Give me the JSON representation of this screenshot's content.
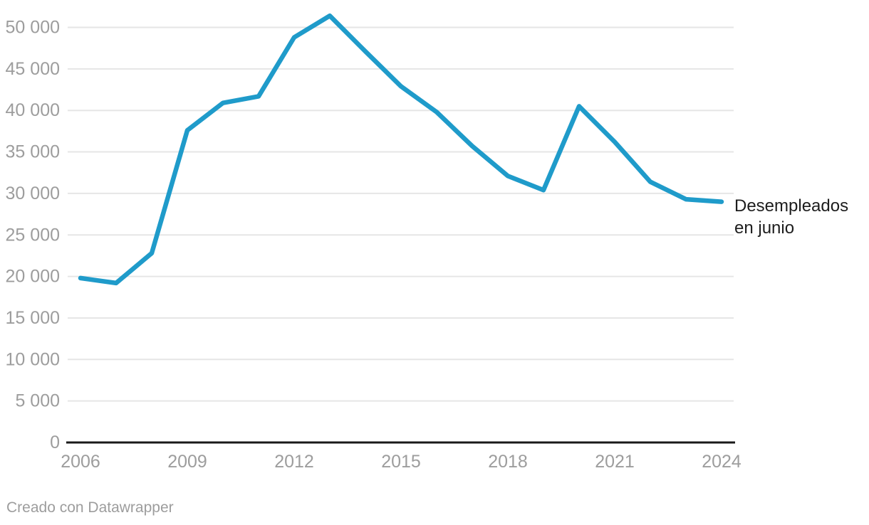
{
  "chart_data": {
    "type": "line",
    "x": [
      2006,
      2007,
      2008,
      2009,
      2010,
      2011,
      2012,
      2013,
      2014,
      2015,
      2016,
      2017,
      2018,
      2019,
      2020,
      2021,
      2022,
      2023,
      2024
    ],
    "series": [
      {
        "name": "Desempleados en junio",
        "values": [
          19800,
          19200,
          22800,
          37600,
          40900,
          41700,
          48800,
          51400,
          47100,
          42900,
          39800,
          35700,
          32100,
          30400,
          40500,
          36200,
          31400,
          29300,
          29000
        ]
      }
    ],
    "title": "",
    "xlabel": "",
    "ylabel": "",
    "ylim": [
      0,
      50000
    ],
    "ytick_step": 5000,
    "ytick_labels": [
      "0",
      "5 000",
      "10 000",
      "15 000",
      "20 000",
      "25 000",
      "30 000",
      "35 000",
      "40 000",
      "45 000",
      "50 000"
    ],
    "xticks": [
      2006,
      2009,
      2012,
      2015,
      2018,
      2021,
      2024
    ],
    "grid": "horizontal",
    "legend_position": "end-of-line"
  },
  "annotation": {
    "line1": "Desempleados",
    "line2": "en junio"
  },
  "footer": {
    "credit": "Creado con Datawrapper"
  },
  "colors": {
    "line": "#1f9bca",
    "gridline": "#e6e6e6",
    "baseline": "#1a1a1a",
    "axis_text": "#9d9d9d",
    "annotation_text": "#1d1d1d",
    "credit_text": "#9d9d9d"
  }
}
